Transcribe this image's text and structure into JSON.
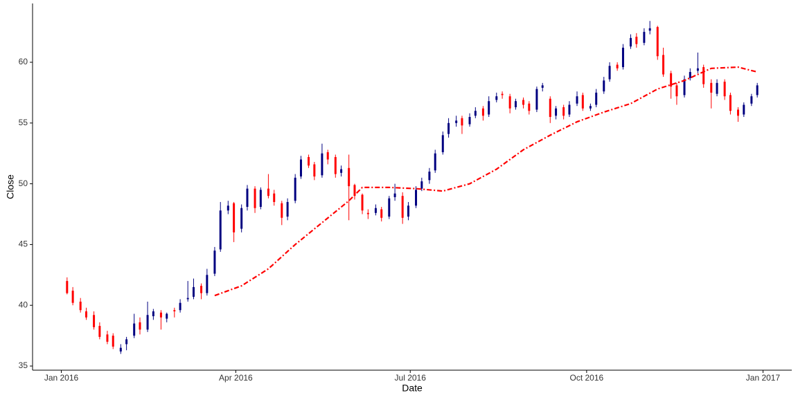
{
  "chart_data": {
    "type": "candlestick",
    "x_label": "Date",
    "y_label": "Close",
    "up_color": "#000080",
    "down_color": "#ff0000",
    "x": [
      "2016-01-04",
      "2016-01-07",
      "2016-01-11",
      "2016-01-14",
      "2016-01-18",
      "2016-01-21",
      "2016-01-25",
      "2016-01-28",
      "2016-02-01",
      "2016-02-04",
      "2016-02-08",
      "2016-02-11",
      "2016-02-15",
      "2016-02-18",
      "2016-02-22",
      "2016-02-25",
      "2016-02-29",
      "2016-03-03",
      "2016-03-07",
      "2016-03-10",
      "2016-03-14",
      "2016-03-17",
      "2016-03-21",
      "2016-03-24",
      "2016-03-28",
      "2016-03-31",
      "2016-04-04",
      "2016-04-07",
      "2016-04-11",
      "2016-04-14",
      "2016-04-18",
      "2016-04-21",
      "2016-04-25",
      "2016-04-28",
      "2016-05-02",
      "2016-05-05",
      "2016-05-09",
      "2016-05-12",
      "2016-05-16",
      "2016-05-19",
      "2016-05-23",
      "2016-05-26",
      "2016-05-30",
      "2016-06-02",
      "2016-06-06",
      "2016-06-09",
      "2016-06-13",
      "2016-06-16",
      "2016-06-20",
      "2016-06-23",
      "2016-06-27",
      "2016-06-30",
      "2016-07-04",
      "2016-07-07",
      "2016-07-11",
      "2016-07-14",
      "2016-07-18",
      "2016-07-21",
      "2016-07-25",
      "2016-07-28",
      "2016-08-01",
      "2016-08-04",
      "2016-08-08",
      "2016-08-11",
      "2016-08-15",
      "2016-08-18",
      "2016-08-22",
      "2016-08-25",
      "2016-08-29",
      "2016-09-01",
      "2016-09-05",
      "2016-09-08",
      "2016-09-12",
      "2016-09-15",
      "2016-09-19",
      "2016-09-22",
      "2016-09-26",
      "2016-09-29",
      "2016-10-03",
      "2016-10-06",
      "2016-10-10",
      "2016-10-13",
      "2016-10-17",
      "2016-10-20",
      "2016-10-24",
      "2016-10-27",
      "2016-10-31",
      "2016-11-03",
      "2016-11-07",
      "2016-11-10",
      "2016-11-14",
      "2016-11-17",
      "2016-11-21",
      "2016-11-24",
      "2016-11-28",
      "2016-12-01",
      "2016-12-05",
      "2016-12-08",
      "2016-12-12",
      "2016-12-15",
      "2016-12-19",
      "2016-12-22",
      "2016-12-26",
      "2016-12-29"
    ],
    "open": [
      42.0,
      41.2,
      40.3,
      39.5,
      39.2,
      38.3,
      37.6,
      37.5,
      36.2,
      36.8,
      37.5,
      38.6,
      38.0,
      39.1,
      39.4,
      38.9,
      39.6,
      39.6,
      40.5,
      40.7,
      41.6,
      41.0,
      42.6,
      44.6,
      47.8,
      48.4,
      46.3,
      48.1,
      49.6,
      48.1,
      49.6,
      49.2,
      48.4,
      47.3,
      48.6,
      50.6,
      52.2,
      51.6,
      50.7,
      52.6,
      52.2,
      50.9,
      51.3,
      49.9,
      49.1,
      47.6,
      47.6,
      47.9,
      47.3,
      48.9,
      49.0,
      47.3,
      48.2,
      49.6,
      50.3,
      51.1,
      52.6,
      54.1,
      55.0,
      55.4,
      54.9,
      55.6,
      56.2,
      55.7,
      56.9,
      57.4,
      57.2,
      56.3,
      56.9,
      56.6,
      56.1,
      57.9,
      57.0,
      55.6,
      56.3,
      55.7,
      56.6,
      57.3,
      56.2,
      56.5,
      57.6,
      58.6,
      59.8,
      59.6,
      61.3,
      62.1,
      61.6,
      62.6,
      62.9,
      60.6,
      59.1,
      58.1,
      57.3,
      58.7,
      59.3,
      59.6,
      58.3,
      57.4,
      58.4,
      57.3,
      56.1,
      55.7,
      56.6,
      57.3
    ],
    "high": [
      42.3,
      41.5,
      40.6,
      39.8,
      39.5,
      38.6,
      37.9,
      37.7,
      36.8,
      37.4,
      39.3,
      39.0,
      40.3,
      39.7,
      39.6,
      39.4,
      39.8,
      40.5,
      42.0,
      42.2,
      41.8,
      43.0,
      44.8,
      48.5,
      48.6,
      48.5,
      48.3,
      49.9,
      49.8,
      49.7,
      50.8,
      49.5,
      48.6,
      48.8,
      50.8,
      52.3,
      52.4,
      51.8,
      53.3,
      52.8,
      52.4,
      51.5,
      52.4,
      50.0,
      49.2,
      47.9,
      48.3,
      48.1,
      49.0,
      50.0,
      49.3,
      48.5,
      49.8,
      50.5,
      51.3,
      52.8,
      54.3,
      55.4,
      55.6,
      55.6,
      55.8,
      56.3,
      56.4,
      57.2,
      57.5,
      57.6,
      57.4,
      57.0,
      57.1,
      56.8,
      58.0,
      58.3,
      57.2,
      56.4,
      56.5,
      56.8,
      57.6,
      57.5,
      56.6,
      57.8,
      58.8,
      60.0,
      60.0,
      61.5,
      62.3,
      62.4,
      62.8,
      63.4,
      63.0,
      61.2,
      59.3,
      58.3,
      58.9,
      59.5,
      60.8,
      59.8,
      58.6,
      58.6,
      58.6,
      57.5,
      56.3,
      56.7,
      57.4,
      58.3
    ],
    "low": [
      40.9,
      40.0,
      39.4,
      38.8,
      38.0,
      37.2,
      36.8,
      36.4,
      36.0,
      36.3,
      37.3,
      37.6,
      37.8,
      38.8,
      38.0,
      38.6,
      39.0,
      39.4,
      40.3,
      40.5,
      40.5,
      40.8,
      42.4,
      44.4,
      47.5,
      45.2,
      46.0,
      47.8,
      47.6,
      47.9,
      48.8,
      48.2,
      46.6,
      47.0,
      48.4,
      50.4,
      51.3,
      50.3,
      50.5,
      51.6,
      50.5,
      50.6,
      47.0,
      48.7,
      47.5,
      47.1,
      47.4,
      46.9,
      47.1,
      48.6,
      46.7,
      47.0,
      48.0,
      49.4,
      50.0,
      50.9,
      52.4,
      53.8,
      54.7,
      54.1,
      54.7,
      55.4,
      55.2,
      55.5,
      56.7,
      57.0,
      55.8,
      56.1,
      56.2,
      55.7,
      55.9,
      57.6,
      55.0,
      55.3,
      55.3,
      55.5,
      56.4,
      56.0,
      56.0,
      56.3,
      57.4,
      58.4,
      59.3,
      59.4,
      61.1,
      61.2,
      61.4,
      62.3,
      60.2,
      58.8,
      57.0,
      56.5,
      57.1,
      58.5,
      59.1,
      57.9,
      56.2,
      57.2,
      56.9,
      55.7,
      55.1,
      55.5,
      56.4,
      57.1
    ],
    "close": [
      41.0,
      40.2,
      39.6,
      39.0,
      38.2,
      37.4,
      37.0,
      36.6,
      36.5,
      37.2,
      38.5,
      38.0,
      39.2,
      39.5,
      39.0,
      39.3,
      39.5,
      40.2,
      40.6,
      41.5,
      41.0,
      42.5,
      44.5,
      47.8,
      48.2,
      46.0,
      48.0,
      49.6,
      48.0,
      49.5,
      49.0,
      48.5,
      47.2,
      48.5,
      50.5,
      52.0,
      51.5,
      50.6,
      52.5,
      52.0,
      50.8,
      51.2,
      49.8,
      49.0,
      47.8,
      47.5,
      48.0,
      47.2,
      48.8,
      49.2,
      47.2,
      48.2,
      49.5,
      50.2,
      51.0,
      52.5,
      54.0,
      55.0,
      55.2,
      54.8,
      55.5,
      56.0,
      55.6,
      56.8,
      57.2,
      57.3,
      56.2,
      56.8,
      56.5,
      56.0,
      57.8,
      58.1,
      55.5,
      56.2,
      55.6,
      56.5,
      57.2,
      56.2,
      56.4,
      57.5,
      58.5,
      59.7,
      59.5,
      61.2,
      62.0,
      61.5,
      62.5,
      62.8,
      60.5,
      59.0,
      58.0,
      57.2,
      58.6,
      59.2,
      59.5,
      58.2,
      57.5,
      58.3,
      57.2,
      56.0,
      55.6,
      56.5,
      57.2,
      58.1
    ],
    "ma": {
      "color": "#ff0000",
      "x": [
        "2016-03-21",
        "2016-04-04",
        "2016-04-18",
        "2016-05-02",
        "2016-05-16",
        "2016-05-30",
        "2016-06-06",
        "2016-06-20",
        "2016-07-04",
        "2016-07-18",
        "2016-08-01",
        "2016-08-15",
        "2016-08-29",
        "2016-09-12",
        "2016-09-26",
        "2016-10-10",
        "2016-10-24",
        "2016-11-07",
        "2016-11-21",
        "2016-12-05",
        "2016-12-19",
        "2016-12-29"
      ],
      "values": [
        40.8,
        41.6,
        43.0,
        45.0,
        46.8,
        48.6,
        49.7,
        49.7,
        49.6,
        49.4,
        50.0,
        51.2,
        52.8,
        54.0,
        55.1,
        55.9,
        56.6,
        57.8,
        58.5,
        59.5,
        59.6,
        59.2
      ]
    },
    "xlim": [
      "2015-12-17",
      "2017-01-16"
    ],
    "xticks": [
      {
        "value": "2016-01-01",
        "label": "Jan 2016"
      },
      {
        "value": "2016-04-01",
        "label": "Apr 2016"
      },
      {
        "value": "2016-07-01",
        "label": "Jul 2016"
      },
      {
        "value": "2016-10-01",
        "label": "Oct 2016"
      },
      {
        "value": "2017-01-01",
        "label": "Jan 2017"
      }
    ],
    "ylim": [
      34.66,
      64.84
    ],
    "yticks": [
      35,
      40,
      45,
      50,
      55,
      60
    ],
    "grid": false
  }
}
